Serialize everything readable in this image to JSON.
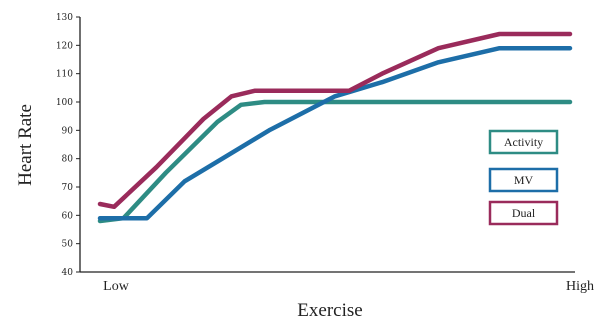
{
  "chart_data": {
    "type": "line",
    "xlabel": "Exercise",
    "ylabel": "Heart Rate",
    "xlim": [
      0,
      100
    ],
    "ylim": [
      40,
      130
    ],
    "y_ticks": [
      40,
      50,
      60,
      70,
      80,
      90,
      100,
      110,
      120,
      130
    ],
    "x_category_labels": [
      {
        "label": "Low",
        "x": 0
      },
      {
        "label": "High",
        "x": 100
      }
    ],
    "grid": false,
    "legend_position": "right",
    "series": [
      {
        "name": "Activity",
        "color": "#2e8c84",
        "points": [
          [
            0,
            58
          ],
          [
            5,
            59
          ],
          [
            14,
            75
          ],
          [
            25,
            93
          ],
          [
            30,
            99
          ],
          [
            35,
            100
          ],
          [
            100,
            100
          ]
        ]
      },
      {
        "name": "MV",
        "color": "#1d6ea8",
        "points": [
          [
            0,
            59
          ],
          [
            10,
            59
          ],
          [
            18,
            72
          ],
          [
            26,
            80
          ],
          [
            36,
            90
          ],
          [
            50,
            102
          ],
          [
            60,
            107
          ],
          [
            72,
            114
          ],
          [
            85,
            119
          ],
          [
            100,
            119
          ]
        ]
      },
      {
        "name": "Dual",
        "color": "#9a2b5b",
        "points": [
          [
            0,
            64
          ],
          [
            3,
            63
          ],
          [
            12,
            77
          ],
          [
            22,
            94
          ],
          [
            28,
            102
          ],
          [
            33,
            104
          ],
          [
            53,
            104
          ],
          [
            60,
            110
          ],
          [
            72,
            119
          ],
          [
            85,
            124
          ],
          [
            100,
            124
          ]
        ]
      }
    ]
  }
}
